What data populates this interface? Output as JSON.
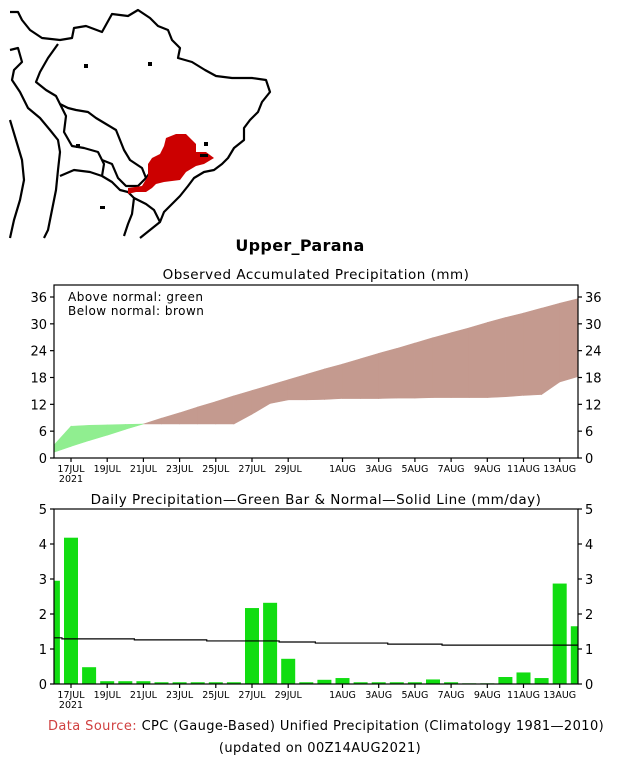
{
  "region_name": "Upper_Parana",
  "colors": {
    "above_normal": "#90ee90",
    "below_normal": "#c49a8f",
    "bars": "#11dd11",
    "map_region": "#cc0000",
    "data_source_label": "#d04040"
  },
  "chart_data": [
    {
      "type": "area",
      "title": "Observed Accumulated Precipitation (mm)",
      "legend": [
        "Above normal: green",
        "Below normal: brown"
      ],
      "legend_placement": "top-left",
      "xlabel": "",
      "ylabel": "",
      "ylim": [
        0,
        36
      ],
      "yticks": [
        "0",
        "6",
        "12",
        "18",
        "24",
        "30",
        "36"
      ],
      "xtick_labels": [
        "17JUL",
        "19JUL",
        "21JUL",
        "23JUL",
        "25JUL",
        "27JUL",
        "29JUL",
        "1AUG",
        "3AUG",
        "5AUG",
        "7AUG",
        "9AUG",
        "11AUG",
        "13AUG"
      ],
      "xtick_year": "2021",
      "x": [
        "16JUL",
        "17JUL",
        "18JUL",
        "19JUL",
        "20JUL",
        "21JUL",
        "22JUL",
        "23JUL",
        "24JUL",
        "25JUL",
        "26JUL",
        "27JUL",
        "28JUL",
        "29JUL",
        "30JUL",
        "31JUL",
        "1AUG",
        "2AUG",
        "3AUG",
        "4AUG",
        "5AUG",
        "6AUG",
        "7AUG",
        "8AUG",
        "9AUG",
        "10AUG",
        "11AUG",
        "12AUG",
        "13AUG",
        "14AUG"
      ],
      "series": [
        {
          "name": "Observed",
          "values": [
            2.9,
            7.1,
            7.3,
            7.4,
            7.5,
            7.6,
            7.6,
            7.6,
            7.6,
            7.6,
            7.6,
            9.8,
            12.2,
            13.0,
            13.0,
            13.1,
            13.3,
            13.3,
            13.3,
            13.4,
            13.4,
            13.5,
            13.5,
            13.5,
            13.5,
            13.7,
            14.0,
            14.2,
            17.0,
            18.2
          ]
        },
        {
          "name": "Normal",
          "values": [
            1.3,
            2.6,
            3.9,
            5.1,
            6.4,
            7.6,
            8.9,
            10.1,
            11.4,
            12.6,
            13.9,
            15.1,
            16.3,
            17.5,
            18.7,
            19.9,
            21.0,
            22.2,
            23.4,
            24.5,
            25.7,
            26.9,
            28.0,
            29.1,
            30.3,
            31.4,
            32.4,
            33.5,
            34.6,
            35.6
          ]
        }
      ]
    },
    {
      "type": "bar",
      "title": "Daily Precipitation—Green Bar & Normal—Solid Line (mm/day)",
      "xlabel": "",
      "ylabel": "",
      "ylim": [
        0,
        5
      ],
      "yticks": [
        "0",
        "1",
        "2",
        "3",
        "4",
        "5"
      ],
      "xtick_labels": [
        "17JUL",
        "19JUL",
        "21JUL",
        "23JUL",
        "25JUL",
        "27JUL",
        "29JUL",
        "1AUG",
        "3AUG",
        "5AUG",
        "7AUG",
        "9AUG",
        "11AUG",
        "13AUG"
      ],
      "xtick_year": "2021",
      "categories": [
        "16JUL",
        "17JUL",
        "18JUL",
        "19JUL",
        "20JUL",
        "21JUL",
        "22JUL",
        "23JUL",
        "24JUL",
        "25JUL",
        "26JUL",
        "27JUL",
        "28JUL",
        "29JUL",
        "30JUL",
        "31JUL",
        "1AUG",
        "2AUG",
        "3AUG",
        "4AUG",
        "5AUG",
        "6AUG",
        "7AUG",
        "8AUG",
        "9AUG",
        "10AUG",
        "11AUG",
        "12AUG",
        "13AUG",
        "14AUG"
      ],
      "series": [
        {
          "name": "Daily Precipitation",
          "values": [
            2.95,
            4.18,
            0.48,
            0.08,
            0.08,
            0.08,
            0.05,
            0.05,
            0.05,
            0.05,
            0.05,
            2.17,
            2.32,
            0.72,
            0.05,
            0.12,
            0.17,
            0.05,
            0.05,
            0.05,
            0.05,
            0.13,
            0.05,
            0.02,
            0.02,
            0.2,
            0.33,
            0.17,
            2.87,
            1.65
          ]
        },
        {
          "name": "Normal",
          "values": [
            1.32,
            1.29,
            1.29,
            1.29,
            1.29,
            1.26,
            1.26,
            1.26,
            1.26,
            1.23,
            1.23,
            1.23,
            1.23,
            1.2,
            1.2,
            1.17,
            1.17,
            1.17,
            1.17,
            1.14,
            1.14,
            1.14,
            1.11,
            1.11,
            1.11,
            1.11,
            1.11,
            1.11,
            1.11,
            1.11
          ]
        }
      ]
    }
  ],
  "footer": {
    "source_label": "Data Source:",
    "source_text": "CPC (Gauge-Based) Unified Precipitation (Climatology 1981—2010)",
    "updated": "(updated on 00Z14AUG2021)"
  }
}
